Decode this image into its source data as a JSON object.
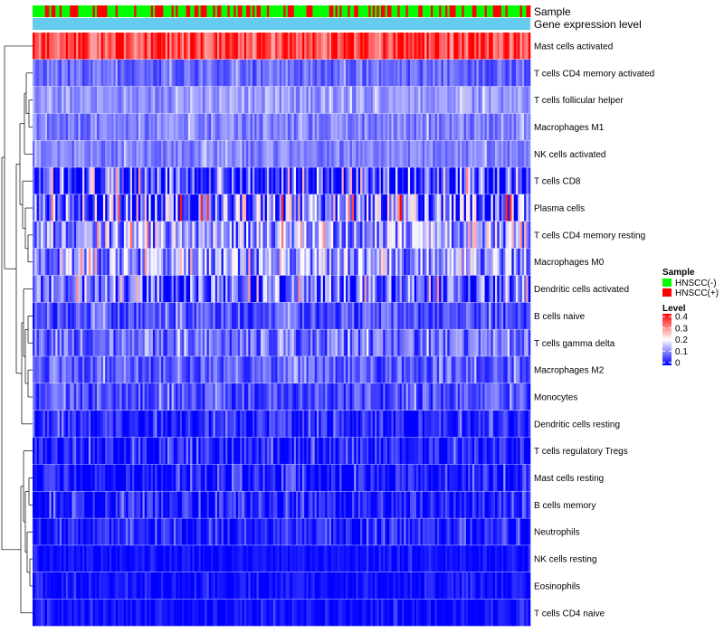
{
  "chart_data": {
    "type": "heatmap",
    "annotation_tracks": [
      "Sample",
      "Gene expression level"
    ],
    "rows": [
      "Mast cells activated",
      "T cells CD4 memory activated",
      "T cells follicular helper",
      "Macrophages M1",
      "NK cells activated",
      "T cells CD8",
      "Plasma cells",
      "T cells CD4 memory resting",
      "Macrophages M0",
      "Dendritic cells activated",
      "B cells naive",
      "T cells gamma delta",
      "Macrophages M2",
      "Monocytes",
      "Dendritic cells resting",
      "T cells regulatory  Tregs",
      "Mast cells resting",
      "B cells memory",
      "Neutrophils",
      "NK cells resting",
      "Eosinophils",
      "T cells CD4 naive"
    ],
    "row_mean_level": [
      0.33,
      0.08,
      0.12,
      0.1,
      0.1,
      0.05,
      0.09,
      0.12,
      0.11,
      0.07,
      0.06,
      0.08,
      0.07,
      0.06,
      0.03,
      0.02,
      0.01,
      0.02,
      0.02,
      0.01,
      0.01,
      0.01
    ],
    "row_max_level": [
      0.4,
      0.16,
      0.2,
      0.18,
      0.17,
      0.3,
      0.4,
      0.32,
      0.3,
      0.3,
      0.16,
      0.2,
      0.17,
      0.16,
      0.12,
      0.12,
      0.12,
      0.12,
      0.1,
      0.05,
      0.06,
      0.06
    ],
    "n_samples": 240,
    "sample_legend": {
      "title": "Sample",
      "entries": [
        {
          "label": "HNSCC(-)",
          "color": "#00ff00"
        },
        {
          "label": "HNSCC(+)",
          "color": "#ff0000"
        }
      ]
    },
    "level_legend": {
      "title": "Level",
      "ticks": [
        "0.4",
        "0.3",
        "0.2",
        "0.1",
        "0"
      ],
      "range": [
        0,
        0.4
      ],
      "colors": [
        "#0000ff",
        "#ffffff",
        "#ff0000"
      ]
    },
    "gene_expression_track_color": "#66ccee",
    "legend_position": "right"
  }
}
